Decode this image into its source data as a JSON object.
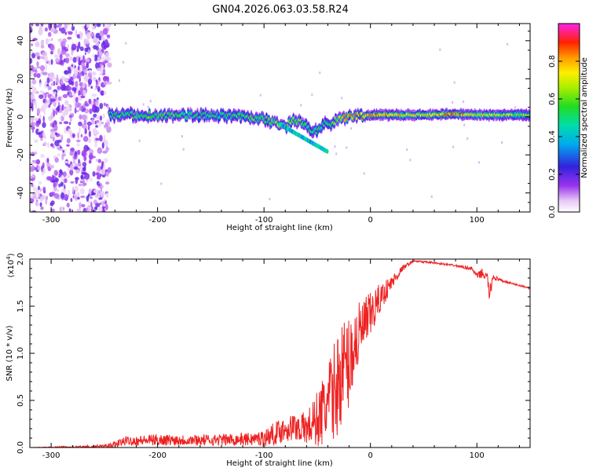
{
  "title": "GN04.2026.063.03.58.R24",
  "chart_data": [
    {
      "type": "heatmap",
      "xlabel": "Height of straight line (km)",
      "ylabel": "Frequency (Hz)",
      "xlim": [
        -320,
        150
      ],
      "ylim": [
        -50,
        49
      ],
      "xticks": [
        -300,
        -200,
        -100,
        0,
        100
      ],
      "yticks": [
        -40,
        -20,
        0,
        20,
        40
      ],
      "ridge": {
        "x": [
          -245,
          -220,
          -200,
          -180,
          -160,
          -140,
          -120,
          -100,
          -90,
          -80,
          -72,
          -65,
          -58,
          -50,
          -44,
          -36,
          -30,
          -20,
          -10,
          0,
          20,
          40,
          60,
          80,
          100,
          120,
          150
        ],
        "frequency_hz": [
          1,
          1,
          1,
          0.5,
          1,
          0.5,
          0,
          -1,
          -3,
          -5,
          -2,
          -3,
          -6,
          -8,
          -4,
          -3,
          -1,
          0,
          0.5,
          1,
          1,
          1,
          1,
          1.5,
          1,
          1,
          1
        ],
        "amplitude": [
          0.5,
          0.55,
          0.55,
          0.55,
          0.5,
          0.5,
          0.55,
          0.55,
          0.6,
          0.7,
          0.6,
          0.6,
          0.55,
          0.5,
          0.5,
          0.55,
          0.7,
          0.85,
          0.8,
          0.8,
          0.75,
          0.7,
          0.75,
          0.85,
          0.7,
          0.65,
          0.6
        ]
      },
      "noise_region_x": [
        -320,
        -245
      ],
      "colorbar": {
        "label": "Normalized spectral amplitude",
        "range": [
          0,
          1
        ],
        "ticks": [
          "0.0",
          "0.2",
          "0.4",
          "0.6",
          "0.8"
        ]
      }
    },
    {
      "type": "line",
      "xlabel": "Height of straight line (km)",
      "ylabel": "SNR (10 * v/v)",
      "scale_label": "(x10",
      "scale_exp": "4",
      "xlim": [
        -320,
        150
      ],
      "ylim": [
        0,
        2.0
      ],
      "xticks": [
        -300,
        -200,
        -100,
        0,
        100
      ],
      "yticks": [
        "0.0",
        "0.5",
        "1.0",
        "1.5",
        "2.0"
      ],
      "series": [
        {
          "color": "#ee2222",
          "x": [
            -320,
            -250,
            -240,
            -230,
            -200,
            -150,
            -110,
            -100,
            -90,
            -80,
            -70,
            -60,
            -50,
            -40,
            -30,
            -25,
            -20,
            -15,
            -10,
            -5,
            0,
            10,
            20,
            30,
            40,
            60,
            80,
            95,
            100,
            105,
            110,
            112,
            115,
            120,
            130,
            150
          ],
          "y": [
            0.0,
            0.01,
            0.03,
            0.07,
            0.08,
            0.08,
            0.09,
            0.1,
            0.15,
            0.2,
            0.22,
            0.2,
            0.3,
            0.45,
            0.7,
            0.85,
            0.9,
            1.1,
            1.2,
            1.3,
            1.4,
            1.6,
            1.75,
            1.9,
            1.98,
            1.96,
            1.93,
            1.9,
            1.82,
            1.85,
            1.8,
            1.6,
            1.82,
            1.78,
            1.75,
            1.69
          ],
          "noise_amplitude": [
            0,
            0.02,
            0.04,
            0.05,
            0.06,
            0.06,
            0.07,
            0.09,
            0.12,
            0.14,
            0.15,
            0.18,
            0.3,
            0.45,
            0.55,
            0.55,
            0.5,
            0.4,
            0.35,
            0.3,
            0.25,
            0.15,
            0.08,
            0.03,
            0.01,
            0.01,
            0.01,
            0.02,
            0.03,
            0.05,
            0.05,
            0.1,
            0.04,
            0.02,
            0.01,
            0.01
          ]
        }
      ]
    }
  ]
}
